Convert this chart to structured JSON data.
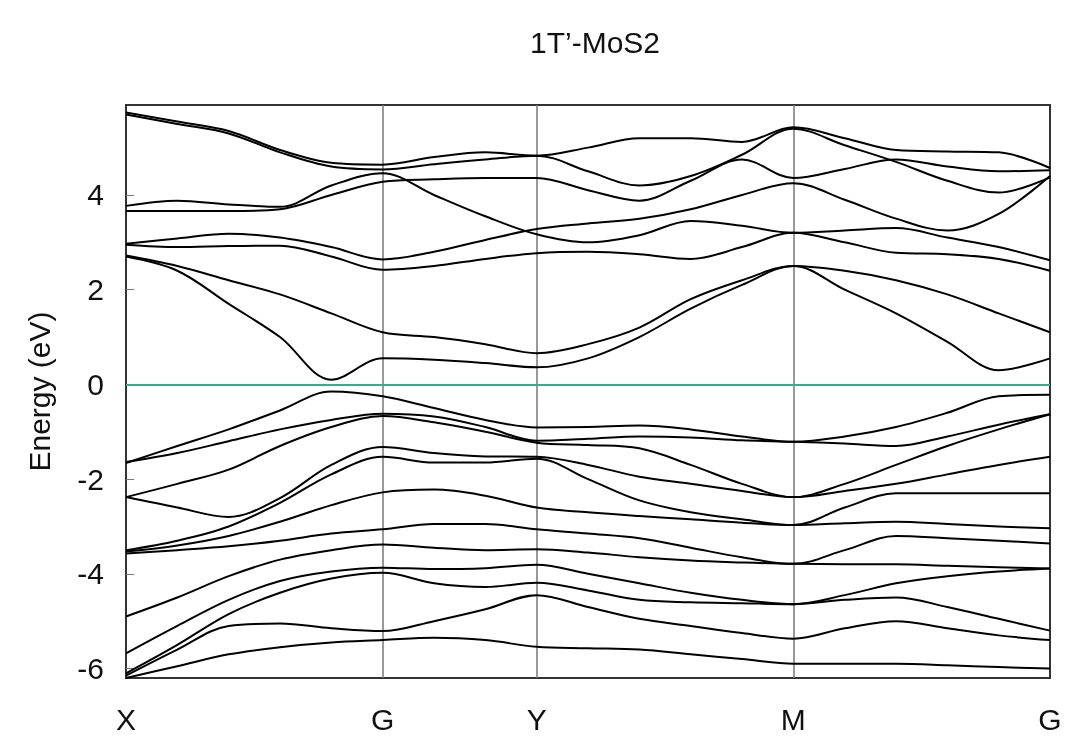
{
  "chart_data": {
    "type": "line",
    "title": "1T’-MoS2",
    "ylabel": "Energy (eV)",
    "categories": [
      "X",
      null,
      null,
      null,
      null,
      "G",
      null,
      null,
      "Y",
      null,
      null,
      null,
      null,
      "M",
      null,
      null,
      null,
      null,
      "G"
    ],
    "ylim": [
      -6.2,
      5.9
    ],
    "yticks": [
      -6,
      -4,
      -2,
      0,
      2,
      4
    ],
    "grid": "x",
    "marker": "none",
    "line_style": "solid",
    "ref_lines": [
      {
        "axis": "y",
        "value": 0,
        "color": "#3fa88f"
      }
    ],
    "series": [
      {
        "color": "#000000",
        "values": [
          5.74,
          5.55,
          5.35,
          4.95,
          4.68,
          4.64,
          4.8,
          4.9,
          4.83,
          5.0,
          5.2,
          5.2,
          5.12,
          5.43,
          5.2,
          4.95,
          4.92,
          4.9,
          4.57
        ]
      },
      {
        "color": "#000000",
        "values": [
          5.7,
          5.5,
          5.3,
          4.9,
          4.6,
          4.54,
          4.65,
          4.75,
          4.83,
          4.5,
          4.2,
          4.4,
          4.85,
          5.4,
          5.05,
          4.7,
          4.3,
          4.05,
          4.37
        ]
      },
      {
        "color": "#000000",
        "values": [
          3.77,
          3.88,
          3.8,
          3.75,
          4.2,
          4.46,
          4.0,
          3.55,
          3.17,
          3.0,
          3.15,
          3.45,
          3.35,
          3.2,
          3.25,
          3.3,
          3.1,
          2.9,
          2.62
        ]
      },
      {
        "color": "#000000",
        "values": [
          3.66,
          3.66,
          3.66,
          3.7,
          4.0,
          4.28,
          4.33,
          4.36,
          4.36,
          4.1,
          3.88,
          4.3,
          4.75,
          4.36,
          4.55,
          4.75,
          4.6,
          4.5,
          4.52
        ]
      },
      {
        "color": "#000000",
        "values": [
          2.97,
          3.08,
          3.18,
          3.1,
          2.9,
          2.64,
          2.8,
          3.05,
          3.28,
          3.4,
          3.5,
          3.7,
          4.0,
          4.25,
          3.9,
          3.5,
          3.25,
          3.6,
          4.4
        ]
      },
      {
        "color": "#000000",
        "values": [
          2.95,
          2.9,
          2.92,
          2.93,
          2.7,
          2.42,
          2.5,
          2.65,
          2.77,
          2.8,
          2.75,
          2.65,
          2.9,
          3.2,
          3.0,
          2.78,
          2.75,
          2.65,
          2.4
        ]
      },
      {
        "color": "#000000",
        "values": [
          2.72,
          2.5,
          2.2,
          1.9,
          1.5,
          1.1,
          1.0,
          0.85,
          0.66,
          0.85,
          1.2,
          1.8,
          2.2,
          2.5,
          2.4,
          2.2,
          1.9,
          1.5,
          1.1
        ]
      },
      {
        "color": "#000000",
        "values": [
          2.7,
          2.4,
          1.7,
          1.0,
          0.1,
          0.55,
          0.52,
          0.45,
          0.36,
          0.55,
          1.0,
          1.6,
          2.1,
          2.5,
          2.0,
          1.5,
          0.9,
          0.3,
          0.55
        ]
      },
      {
        "color": "#000000",
        "values": [
          -1.66,
          -1.3,
          -0.95,
          -0.55,
          -0.15,
          -0.25,
          -0.5,
          -0.75,
          -0.91,
          -0.9,
          -0.87,
          -0.95,
          -1.1,
          -1.21,
          -1.1,
          -0.9,
          -0.6,
          -0.25,
          -0.22
        ]
      },
      {
        "color": "#000000",
        "values": [
          -1.64,
          -1.45,
          -1.2,
          -0.95,
          -0.75,
          -0.62,
          -0.68,
          -0.9,
          -1.19,
          -1.15,
          -1.1,
          -1.12,
          -1.18,
          -1.21,
          -1.25,
          -1.3,
          -1.1,
          -0.85,
          -0.63
        ]
      },
      {
        "color": "#000000",
        "values": [
          -2.38,
          -2.1,
          -1.8,
          -1.3,
          -0.9,
          -0.67,
          -0.8,
          -1.0,
          -1.23,
          -1.28,
          -1.35,
          -1.7,
          -2.1,
          -2.38,
          -2.1,
          -1.7,
          -1.3,
          -0.95,
          -0.63
        ]
      },
      {
        "color": "#000000",
        "values": [
          -2.38,
          -2.6,
          -2.8,
          -2.4,
          -1.7,
          -1.32,
          -1.45,
          -1.52,
          -1.53,
          -1.7,
          -1.95,
          -2.1,
          -2.25,
          -2.38,
          -2.25,
          -2.1,
          -1.9,
          -1.7,
          -1.53
        ]
      },
      {
        "color": "#000000",
        "values": [
          -3.5,
          -3.3,
          -3.0,
          -2.5,
          -1.9,
          -1.53,
          -1.65,
          -1.65,
          -1.57,
          -2.0,
          -2.45,
          -2.7,
          -2.85,
          -2.97,
          -2.6,
          -2.3,
          -2.3,
          -2.3,
          -2.3
        ]
      },
      {
        "color": "#000000",
        "values": [
          -3.53,
          -3.4,
          -3.2,
          -2.9,
          -2.55,
          -2.28,
          -2.22,
          -2.35,
          -2.6,
          -2.7,
          -2.78,
          -2.85,
          -2.92,
          -2.97,
          -2.93,
          -2.9,
          -2.95,
          -3.0,
          -3.04
        ]
      },
      {
        "color": "#000000",
        "values": [
          -3.57,
          -3.5,
          -3.42,
          -3.3,
          -3.15,
          -3.06,
          -2.95,
          -2.95,
          -3.06,
          -3.15,
          -3.25,
          -3.45,
          -3.65,
          -3.79,
          -3.5,
          -3.2,
          -3.25,
          -3.3,
          -3.36
        ]
      },
      {
        "color": "#000000",
        "values": [
          -4.9,
          -4.5,
          -4.05,
          -3.7,
          -3.5,
          -3.38,
          -3.45,
          -3.5,
          -3.48,
          -3.55,
          -3.65,
          -3.72,
          -3.76,
          -3.79,
          -3.8,
          -3.8,
          -3.83,
          -3.86,
          -3.89
        ]
      },
      {
        "color": "#000000",
        "values": [
          -5.68,
          -5.1,
          -4.55,
          -4.15,
          -3.95,
          -3.87,
          -3.9,
          -3.88,
          -3.81,
          -4.0,
          -4.2,
          -4.4,
          -4.55,
          -4.64,
          -4.45,
          -4.2,
          -4.05,
          -3.95,
          -3.89
        ]
      },
      {
        "color": "#000000",
        "values": [
          -6.1,
          -5.5,
          -4.85,
          -4.4,
          -4.1,
          -3.98,
          -4.2,
          -4.28,
          -4.19,
          -4.35,
          -4.55,
          -4.6,
          -4.62,
          -4.64,
          -4.55,
          -4.5,
          -4.7,
          -4.95,
          -5.2
        ]
      },
      {
        "color": "#000000",
        "values": [
          -6.15,
          -5.6,
          -5.1,
          -5.05,
          -5.15,
          -5.21,
          -5.0,
          -4.75,
          -4.45,
          -4.7,
          -4.95,
          -5.1,
          -5.25,
          -5.37,
          -5.15,
          -5.0,
          -5.15,
          -5.3,
          -5.4
        ]
      },
      {
        "color": "#000000",
        "values": [
          -6.2,
          -5.95,
          -5.7,
          -5.55,
          -5.45,
          -5.4,
          -5.35,
          -5.4,
          -5.54,
          -5.57,
          -5.6,
          -5.7,
          -5.8,
          -5.9,
          -5.9,
          -5.9,
          -5.93,
          -5.97,
          -6.0
        ]
      }
    ]
  }
}
